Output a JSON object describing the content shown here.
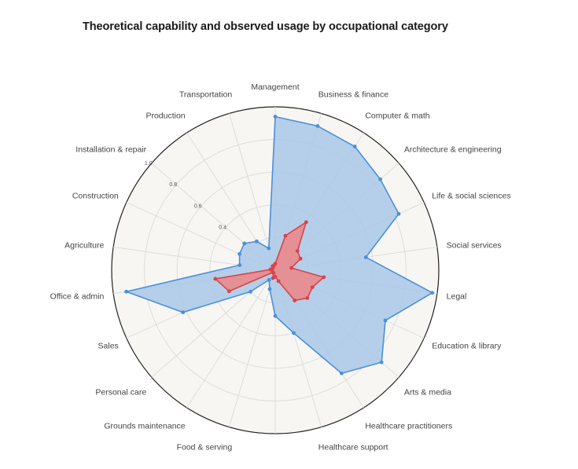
{
  "title": "Theoretical capability and observed usage by occupational category",
  "chart_data": {
    "type": "radar",
    "title": "Theoretical capability and observed usage by occupational category",
    "categories": [
      "Management",
      "Business & finance",
      "Computer & math",
      "Architecture & engineering",
      "Life & social sciences",
      "Social services",
      "Legal",
      "Education & library",
      "Arts & media",
      "Healthcare practitioners",
      "Healthcare support",
      "",
      "Food & serving",
      "Grounds maintenance",
      "Personal care",
      "Sales",
      "Office & admin",
      "Agriculture",
      "Construction",
      "Installation & repair",
      "Production",
      "Transportation"
    ],
    "radial_ticks": [
      {
        "value": 0.4,
        "label": "0.4"
      },
      {
        "value": 0.6,
        "label": "0.6"
      },
      {
        "value": 0.8,
        "label": "0.8"
      },
      {
        "value": 1.0,
        "label": "1.0"
      }
    ],
    "rlim": [
      0,
      1
    ],
    "grid": true,
    "series": [
      {
        "color": "#4a90d9",
        "fill": "#a9c8e8",
        "values": [
          0.94,
          0.92,
          0.9,
          0.85,
          0.83,
          0.56,
          0.97,
          0.74,
          0.86,
          0.75,
          0.4,
          0.28,
          0.12,
          0.07,
          0.2,
          0.62,
          0.92,
          0.22,
          0.24,
          0.25,
          0.21,
          0.14
        ]
      },
      {
        "color": "#d9434a",
        "fill": "#f08080",
        "values": [
          0.04,
          0.22,
          0.35,
          0.18,
          0.17,
          0.1,
          0.3,
          0.25,
          0.26,
          0.22,
          0.07,
          0.04,
          0.05,
          0.02,
          0.02,
          0.31,
          0.37,
          0.03,
          0.02,
          0.02,
          0.03,
          0.03
        ]
      }
    ]
  }
}
